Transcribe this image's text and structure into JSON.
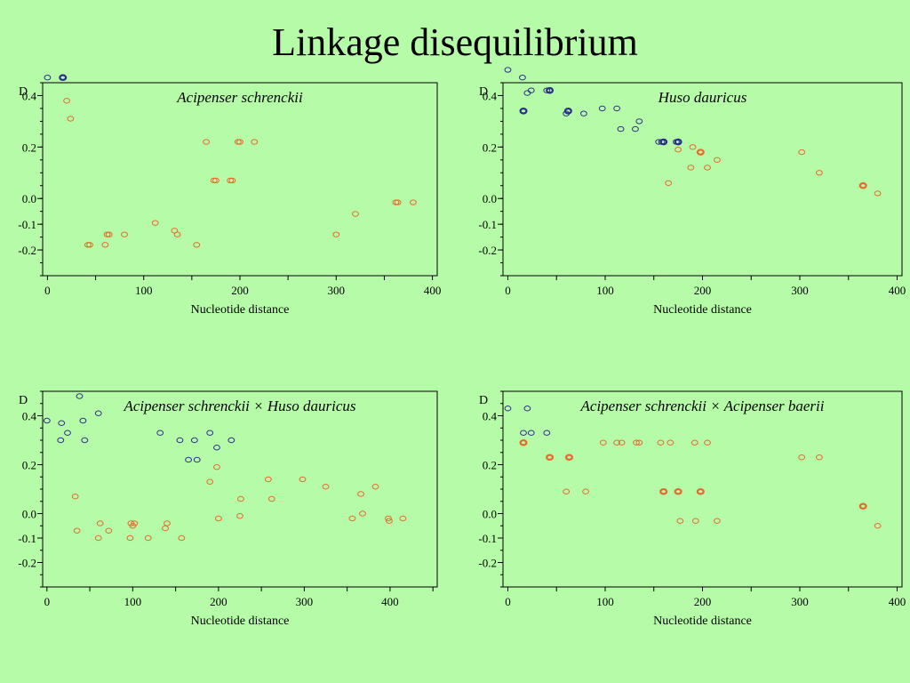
{
  "slide": {
    "title": "Linkage disequilibrium"
  },
  "colors": {
    "background": "#b6fca8",
    "within_species": "#2d2d8c",
    "between_species": "#e8682a"
  },
  "chart_data": [
    {
      "type": "scatter",
      "title": "Acipenser schrenckii",
      "xlabel": "Nucleotide distance",
      "ylabel": "D",
      "x_ticks": [
        "0",
        "100",
        "200",
        "300",
        "400"
      ],
      "y_ticks": [
        "0.4",
        "0.2",
        "0.0",
        "-0.1",
        "-0.2"
      ],
      "xlim": [
        -5,
        405
      ],
      "ylim": [
        -0.3,
        0.45
      ],
      "grid": false,
      "series": [
        {
          "color": "#2d2d8c",
          "points": [
            [
              0,
              0.47
            ],
            [
              16,
              0.47
            ]
          ],
          "bold": [
            [
              16,
              0.47
            ]
          ]
        },
        {
          "color": "#e8682a",
          "points": [
            [
              20,
              0.38
            ],
            [
              24,
              0.31
            ],
            [
              42,
              -0.18
            ],
            [
              44,
              -0.18
            ],
            [
              60,
              -0.18
            ],
            [
              62,
              -0.14
            ],
            [
              64,
              -0.14
            ],
            [
              80,
              -0.14
            ],
            [
              112,
              -0.095
            ],
            [
              132,
              -0.125
            ],
            [
              135,
              -0.14
            ],
            [
              155,
              -0.18
            ],
            [
              165,
              0.22
            ],
            [
              173,
              0.07
            ],
            [
              175,
              0.07
            ],
            [
              190,
              0.07
            ],
            [
              192,
              0.07
            ],
            [
              198,
              0.22
            ],
            [
              200,
              0.22
            ],
            [
              215,
              0.22
            ],
            [
              300,
              -0.14
            ],
            [
              320,
              -0.06
            ],
            [
              362,
              -0.015
            ],
            [
              364,
              -0.015
            ],
            [
              380,
              -0.015
            ]
          ],
          "bold": []
        }
      ]
    },
    {
      "type": "scatter",
      "title": "Huso dauricus",
      "xlabel": "Nucleotide distance",
      "ylabel": "D",
      "x_ticks": [
        "0",
        "100",
        "200",
        "300",
        "400"
      ],
      "y_ticks": [
        "0.4",
        "0.2",
        "0.0",
        "-0.1",
        "-0.2"
      ],
      "xlim": [
        -5,
        405
      ],
      "ylim": [
        -0.3,
        0.45
      ],
      "grid": false,
      "series": [
        {
          "color": "#2d2d8c",
          "points": [
            [
              0,
              0.5
            ],
            [
              15,
              0.47
            ],
            [
              16,
              0.34
            ],
            [
              20,
              0.41
            ],
            [
              24,
              0.42
            ],
            [
              40,
              0.42
            ],
            [
              43,
              0.42
            ],
            [
              60,
              0.33
            ],
            [
              62,
              0.34
            ],
            [
              78,
              0.33
            ],
            [
              97,
              0.35
            ],
            [
              112,
              0.35
            ],
            [
              116,
              0.27
            ],
            [
              131,
              0.27
            ],
            [
              135,
              0.3
            ],
            [
              155,
              0.22
            ],
            [
              158,
              0.22
            ],
            [
              160,
              0.22
            ],
            [
              173,
              0.22
            ],
            [
              175,
              0.22
            ]
          ],
          "bold": [
            [
              16,
              0.34
            ],
            [
              43,
              0.42
            ],
            [
              62,
              0.34
            ],
            [
              160,
              0.22
            ],
            [
              175,
              0.22
            ]
          ]
        },
        {
          "color": "#e8682a",
          "points": [
            [
              165,
              0.06
            ],
            [
              175,
              0.19
            ],
            [
              188,
              0.12
            ],
            [
              190,
              0.2
            ],
            [
              198,
              0.18
            ],
            [
              205,
              0.12
            ],
            [
              215,
              0.15
            ],
            [
              302,
              0.18
            ],
            [
              320,
              0.1
            ],
            [
              365,
              0.05
            ],
            [
              380,
              0.02
            ]
          ],
          "bold": [
            [
              198,
              0.18
            ],
            [
              365,
              0.05
            ]
          ]
        }
      ]
    },
    {
      "type": "scatter",
      "title": "Acipenser schrenckii × Huso dauricus",
      "xlabel": "Nucleotide distance",
      "ylabel": "D",
      "x_ticks": [
        "0",
        "100",
        "200",
        "300",
        "400"
      ],
      "y_ticks": [
        "0.4",
        "0.2",
        "0.0",
        "-0.1",
        "-0.2"
      ],
      "xlim": [
        -5,
        455
      ],
      "ylim": [
        -0.3,
        0.5
      ],
      "grid": false,
      "series": [
        {
          "color": "#2d2d8c",
          "points": [
            [
              0,
              0.38
            ],
            [
              16,
              0.3
            ],
            [
              17,
              0.37
            ],
            [
              24,
              0.33
            ],
            [
              38,
              0.48
            ],
            [
              42,
              0.38
            ],
            [
              44,
              0.3
            ],
            [
              60,
              0.41
            ],
            [
              132,
              0.33
            ],
            [
              155,
              0.3
            ],
            [
              165,
              0.22
            ],
            [
              172,
              0.3
            ],
            [
              175,
              0.22
            ],
            [
              190,
              0.33
            ],
            [
              198,
              0.27
            ],
            [
              215,
              0.3
            ]
          ],
          "bold": []
        },
        {
          "color": "#e8682a",
          "points": [
            [
              33,
              0.07
            ],
            [
              35,
              -0.07
            ],
            [
              60,
              -0.1
            ],
            [
              62,
              -0.04
            ],
            [
              72,
              -0.07
            ],
            [
              97,
              -0.1
            ],
            [
              100,
              -0.05
            ],
            [
              98,
              -0.04
            ],
            [
              102,
              -0.04
            ],
            [
              118,
              -0.1
            ],
            [
              138,
              -0.06
            ],
            [
              140,
              -0.04
            ],
            [
              157,
              -0.1
            ],
            [
              190,
              0.13
            ],
            [
              198,
              0.19
            ],
            [
              200,
              -0.02
            ],
            [
              225,
              -0.01
            ],
            [
              226,
              0.06
            ],
            [
              258,
              0.14
            ],
            [
              262,
              0.06
            ],
            [
              298,
              0.14
            ],
            [
              325,
              0.11
            ],
            [
              356,
              -0.02
            ],
            [
              366,
              0.08
            ],
            [
              368,
              0.0
            ],
            [
              383,
              0.11
            ],
            [
              398,
              -0.02
            ],
            [
              399,
              -0.03
            ],
            [
              415,
              -0.02
            ]
          ],
          "bold": []
        }
      ]
    },
    {
      "type": "scatter",
      "title": "Acipenser schrenckii × Acipenser baerii",
      "xlabel": "Nucleotide distance",
      "ylabel": "D",
      "x_ticks": [
        "0",
        "100",
        "200",
        "300",
        "400"
      ],
      "y_ticks": [
        "0.4",
        "0.2",
        "0.0",
        "-0.1",
        "-0.2"
      ],
      "xlim": [
        -5,
        405
      ],
      "ylim": [
        -0.3,
        0.5
      ],
      "grid": false,
      "series": [
        {
          "color": "#2d2d8c",
          "points": [
            [
              0,
              0.43
            ],
            [
              16,
              0.33
            ],
            [
              20,
              0.43
            ],
            [
              24,
              0.33
            ],
            [
              40,
              0.33
            ]
          ],
          "bold": []
        },
        {
          "color": "#e8682a",
          "points": [
            [
              16,
              0.29
            ],
            [
              43,
              0.23
            ],
            [
              60,
              0.09
            ],
            [
              63,
              0.23
            ],
            [
              80,
              0.09
            ],
            [
              98,
              0.29
            ],
            [
              112,
              0.29
            ],
            [
              117,
              0.29
            ],
            [
              132,
              0.29
            ],
            [
              135,
              0.29
            ],
            [
              157,
              0.29
            ],
            [
              160,
              0.09
            ],
            [
              167,
              0.29
            ],
            [
              175,
              0.09
            ],
            [
              177,
              -0.03
            ],
            [
              192,
              0.29
            ],
            [
              193,
              -0.03
            ],
            [
              198,
              0.09
            ],
            [
              205,
              0.29
            ],
            [
              215,
              -0.03
            ],
            [
              302,
              0.23
            ],
            [
              320,
              0.23
            ],
            [
              365,
              0.03
            ],
            [
              380,
              -0.05
            ]
          ],
          "bold": [
            [
              16,
              0.29
            ],
            [
              43,
              0.23
            ],
            [
              63,
              0.23
            ],
            [
              160,
              0.09
            ],
            [
              175,
              0.09
            ],
            [
              198,
              0.09
            ],
            [
              365,
              0.03
            ]
          ]
        }
      ]
    }
  ]
}
